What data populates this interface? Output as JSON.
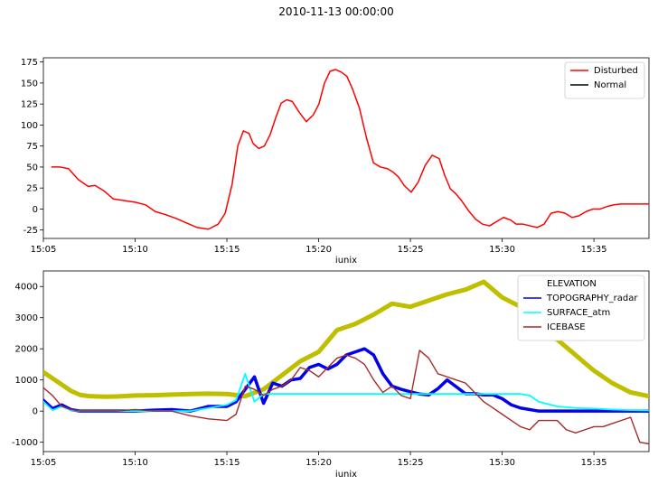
{
  "figure_title": "2010-11-13 00:00:00",
  "colors": {
    "disturbed": "#ff0000",
    "normal": "#000000",
    "elevation": "#bfbf00",
    "topography": "#0000ee",
    "surface": "#00ffff",
    "icebase": "#a52a2a"
  },
  "chart_data": [
    {
      "type": "line",
      "xlabel": "iunix",
      "x_ticks": [
        "15:05",
        "15:10",
        "15:15",
        "15:20",
        "15:25",
        "15:30",
        "15:35"
      ],
      "x_range_minutes": [
        0,
        33
      ],
      "ylim": [
        -35,
        180
      ],
      "y_ticks": [
        -25,
        0,
        25,
        50,
        75,
        100,
        125,
        150,
        175
      ],
      "legend_position": "top-right",
      "legend": [
        "Disturbed",
        "Normal"
      ],
      "series": [
        {
          "name": "Disturbed",
          "x": [
            0.6,
            1.2,
            1.8,
            2.5,
            3.2,
            3.7,
            4.3,
            5.0,
            5.8,
            6.6,
            7.3,
            8.0,
            8.8,
            9.6,
            10.3,
            11.0,
            11.8,
            12.5,
            13.0,
            13.5,
            13.9,
            14.3,
            14.7,
            15.0,
            15.4,
            15.8,
            16.2,
            16.6,
            17.0,
            17.4,
            17.8,
            18.3,
            18.8,
            19.3,
            19.7,
            20.1,
            20.5,
            20.9,
            21.3,
            21.7,
            22.1,
            22.6,
            23.1,
            23.6,
            24.1,
            24.6,
            25.0,
            25.4,
            25.8,
            26.3,
            26.8,
            27.3,
            27.8,
            28.3,
            28.7,
            29.1,
            29.5,
            29.9,
            30.4,
            30.9,
            31.4,
            31.9,
            32.4,
            32.9,
            33.4,
            33.8,
            34.3,
            34.8,
            35.3,
            35.8,
            36.3,
            36.8,
            37.3,
            37.8,
            38.3,
            38.8,
            39.3,
            39.8,
            40.3,
            40.8,
            41.3,
            41.8,
            42.3,
            42.8,
            43.3
          ],
          "y": [
            50,
            50,
            48,
            35,
            27,
            28,
            22,
            12,
            10,
            8,
            5,
            -3,
            -7,
            -12,
            -17,
            -22,
            -24,
            -18,
            -5,
            30,
            75,
            93,
            90,
            78,
            72,
            75,
            88,
            108,
            126,
            130,
            128,
            115,
            104,
            112,
            125,
            150,
            164,
            166,
            163,
            158,
            143,
            120,
            85,
            55,
            50,
            48,
            44,
            38,
            28,
            20,
            32,
            52,
            64,
            60,
            40,
            24,
            18,
            10,
            -2,
            -12,
            -18,
            -20,
            -15,
            -10,
            -13,
            -18,
            -18,
            -20,
            -22,
            -18,
            -5,
            -3,
            -5,
            -10,
            -8,
            -3,
            0,
            0,
            3,
            5,
            6,
            6,
            6,
            6,
            6
          ]
        }
      ]
    },
    {
      "type": "line",
      "xlabel": "iunix",
      "x_ticks": [
        "15:05",
        "15:10",
        "15:15",
        "15:20",
        "15:25",
        "15:30",
        "15:35"
      ],
      "x_range_minutes": [
        0,
        33
      ],
      "ylim": [
        -1300,
        4500
      ],
      "y_ticks": [
        -1000,
        0,
        1000,
        2000,
        3000,
        4000
      ],
      "legend_position": "top-right",
      "legend": [
        "ELEVATION",
        "TOPOGRAPHY_radar",
        "SURFACE_atm",
        "ICEBASE"
      ],
      "series": [
        {
          "name": "ELEVATION",
          "x": [
            0,
            0.5,
            1.0,
            1.5,
            2.0,
            2.5,
            3.0,
            3.5,
            4.0,
            5.0,
            6.0,
            7.0,
            8.0,
            9.0,
            10.0,
            11.0,
            12.0,
            13.0,
            14.0,
            15.0,
            16.0,
            17.0,
            18.0,
            19.0,
            20.0,
            21.0,
            22.0,
            23.0,
            24.0,
            25.0,
            26.0,
            27.0,
            28.0,
            29.0,
            30.0,
            31.0,
            32.0,
            33.0
          ],
          "y": [
            1250,
            1050,
            850,
            650,
            520,
            480,
            470,
            460,
            470,
            500,
            510,
            530,
            550,
            560,
            550,
            480,
            700,
            1150,
            1600,
            1900,
            2600,
            2800,
            3100,
            3450,
            3350,
            3550,
            3750,
            3900,
            4150,
            3650,
            3350,
            2550,
            2300,
            1800,
            1300,
            900,
            600,
            480
          ]
        },
        {
          "name": "TOPOGRAPHY_radar",
          "x": [
            0,
            0.5,
            1.0,
            1.5,
            2.0,
            3.0,
            4.0,
            5.0,
            6.0,
            7.0,
            8.0,
            9.0,
            10.0,
            10.5,
            11.0,
            11.5,
            12.0,
            12.5,
            13.0,
            13.5,
            14.0,
            14.5,
            15.0,
            15.5,
            16.0,
            16.5,
            17.0,
            17.5,
            18.0,
            18.5,
            19.0,
            19.5,
            20.0,
            20.5,
            21.0,
            21.5,
            22.0,
            22.5,
            23.0,
            23.5,
            24.0,
            24.5,
            25.0,
            25.5,
            26.0,
            27.0,
            27.5,
            28.0,
            28.5,
            29.0,
            29.5,
            30.0,
            30.5,
            31.0,
            31.5,
            32.0,
            32.5,
            33.0
          ],
          "y": [
            350,
            80,
            200,
            50,
            0,
            0,
            0,
            0,
            30,
            50,
            0,
            150,
            150,
            300,
            700,
            1100,
            250,
            900,
            800,
            1000,
            1050,
            1400,
            1500,
            1350,
            1500,
            1800,
            1900,
            2000,
            1800,
            1200,
            800,
            700,
            620,
            550,
            520,
            720,
            1000,
            780,
            560,
            560,
            520,
            520,
            400,
            200,
            100,
            0,
            0,
            0,
            0,
            0,
            0,
            0,
            0,
            0,
            0,
            0,
            0,
            0
          ],
          "x_offsets_note": ""
        },
        {
          "name": "SURFACE_atm",
          "x": [
            0,
            0.5,
            1.0,
            1.5,
            2.0,
            3.0,
            4.0,
            5.0,
            6.0,
            7.0,
            8.0,
            9.0,
            10.0,
            10.5,
            11.0,
            11.5,
            12.0,
            26.0,
            26.5,
            27.0,
            28.0,
            29.0,
            30.0,
            31.0,
            32.0,
            33.0
          ],
          "y": [
            300,
            30,
            150,
            30,
            0,
            0,
            0,
            0,
            0,
            0,
            0,
            100,
            200,
            350,
            1200,
            300,
            550,
            550,
            500,
            300,
            150,
            100,
            80,
            50,
            30,
            20
          ]
        },
        {
          "name": "ICEBASE",
          "x": [
            0,
            0.5,
            1.0,
            1.5,
            2.0,
            3.0,
            4.0,
            5.0,
            6.0,
            7.0,
            8.0,
            9.0,
            10.0,
            10.5,
            11.0,
            11.5,
            12.0,
            12.5,
            13.0,
            13.5,
            14.0,
            14.5,
            15.0,
            15.5,
            16.0,
            16.5,
            17.0,
            17.5,
            18.0,
            18.5,
            19.0,
            19.5,
            20.0,
            20.5,
            21.0,
            21.5,
            22.0,
            22.5,
            23.0,
            23.5,
            24.0,
            24.5,
            25.0,
            25.5,
            26.0,
            26.5,
            27.0,
            27.5,
            28.0,
            28.5,
            29.0,
            29.5,
            30.0,
            30.5,
            31.0,
            31.5,
            32.0,
            32.5,
            33.0
          ],
          "y": [
            750,
            500,
            150,
            50,
            0,
            0,
            0,
            50,
            0,
            0,
            -150,
            -250,
            -300,
            -100,
            800,
            700,
            500,
            700,
            800,
            1000,
            1400,
            1300,
            1100,
            1400,
            1700,
            1800,
            1700,
            1500,
            1000,
            600,
            800,
            500,
            400,
            1950,
            1700,
            1200,
            1100,
            1000,
            900,
            600,
            300,
            100,
            -100,
            -300,
            -500,
            -600,
            -300,
            -300,
            -300,
            -600,
            -700,
            -600,
            -500,
            -500,
            -400,
            -300,
            -200,
            -1000,
            -1050
          ]
        }
      ]
    }
  ]
}
